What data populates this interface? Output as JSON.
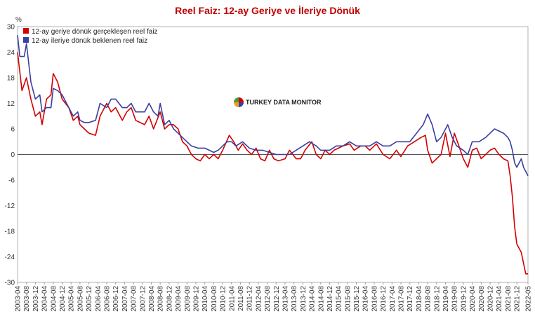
{
  "chart_data": {
    "type": "line",
    "title": "Reel Faiz: 12-ay Geriye ve İleriye Dönük",
    "ylabel": "%",
    "ylim": [
      -30,
      30
    ],
    "yticks": [
      30,
      24,
      18,
      12,
      6,
      0,
      -6,
      -12,
      -18,
      -24,
      -30
    ],
    "x_start": "2003-04",
    "x_end": "2022-05",
    "xtick_labels": [
      "2003-04",
      "2003-08",
      "2003-12",
      "2004-04",
      "2004-08",
      "2004-12",
      "2005-04",
      "2005-08",
      "2005-12",
      "2006-04",
      "2006-08",
      "2006-12",
      "2007-04",
      "2007-08",
      "2007-12",
      "2008-04",
      "2008-08",
      "2008-12",
      "2009-04",
      "2009-08",
      "2009-12",
      "2010-04",
      "2010-08",
      "2010-12",
      "2011-04",
      "2011-08",
      "2011-12",
      "2012-04",
      "2012-08",
      "2012-12",
      "2013-04",
      "2013-08",
      "2013-12",
      "2014-04",
      "2014-08",
      "2014-12",
      "2015-04",
      "2015-08",
      "2015-12",
      "2016-04",
      "2016-08",
      "2016-12",
      "2017-04",
      "2017-08",
      "2017-12",
      "2018-04",
      "2018-08",
      "2018-12",
      "2019-04",
      "2019-08",
      "2019-12",
      "2020-04",
      "2020-08",
      "2020-12",
      "2021-04",
      "2021-08",
      "2021-12",
      "2022-05"
    ],
    "legend_position": "top-left",
    "watermark": "TURKEY DATA MONITOR",
    "series": [
      {
        "name": "12-ay geriye dönük gerçekleşen reel faiz",
        "color": "#d40000",
        "points": [
          [
            "2003-04",
            24
          ],
          [
            "2003-06",
            15
          ],
          [
            "2003-08",
            18
          ],
          [
            "2003-10",
            13
          ],
          [
            "2003-12",
            9
          ],
          [
            "2004-02",
            10
          ],
          [
            "2004-03",
            7
          ],
          [
            "2004-05",
            13
          ],
          [
            "2004-07",
            14
          ],
          [
            "2004-08",
            19
          ],
          [
            "2004-10",
            17
          ],
          [
            "2004-12",
            13
          ],
          [
            "2005-03",
            11
          ],
          [
            "2005-05",
            8
          ],
          [
            "2005-07",
            9
          ],
          [
            "2005-08",
            7
          ],
          [
            "2005-10",
            6
          ],
          [
            "2005-12",
            5
          ],
          [
            "2006-03",
            4.5
          ],
          [
            "2006-05",
            9
          ],
          [
            "2006-08",
            12
          ],
          [
            "2006-10",
            10
          ],
          [
            "2006-12",
            11
          ],
          [
            "2007-03",
            8
          ],
          [
            "2007-05",
            10
          ],
          [
            "2007-07",
            11
          ],
          [
            "2007-09",
            8
          ],
          [
            "2007-11",
            7.5
          ],
          [
            "2008-01",
            7
          ],
          [
            "2008-03",
            9
          ],
          [
            "2008-05",
            6
          ],
          [
            "2008-08",
            10
          ],
          [
            "2008-10",
            6
          ],
          [
            "2008-12",
            7
          ],
          [
            "2009-02",
            7
          ],
          [
            "2009-04",
            6
          ],
          [
            "2009-06",
            3
          ],
          [
            "2009-08",
            2
          ],
          [
            "2009-10",
            0
          ],
          [
            "2009-12",
            -1
          ],
          [
            "2010-02",
            -1.5
          ],
          [
            "2010-04",
            0
          ],
          [
            "2010-06",
            -1
          ],
          [
            "2010-08",
            0
          ],
          [
            "2010-10",
            -1
          ],
          [
            "2010-12",
            1
          ],
          [
            "2011-03",
            4.5
          ],
          [
            "2011-05",
            3
          ],
          [
            "2011-07",
            1
          ],
          [
            "2011-09",
            2.5
          ],
          [
            "2011-11",
            1
          ],
          [
            "2012-01",
            0
          ],
          [
            "2012-03",
            1.5
          ],
          [
            "2012-05",
            -1
          ],
          [
            "2012-07",
            -1.5
          ],
          [
            "2012-09",
            1
          ],
          [
            "2012-11",
            -1
          ],
          [
            "2013-01",
            -1.5
          ],
          [
            "2013-04",
            -1
          ],
          [
            "2013-06",
            1
          ],
          [
            "2013-09",
            -1
          ],
          [
            "2013-11",
            -1
          ],
          [
            "2014-01",
            1
          ],
          [
            "2014-04",
            3
          ],
          [
            "2014-06",
            0
          ],
          [
            "2014-08",
            -1
          ],
          [
            "2014-10",
            1
          ],
          [
            "2014-12",
            0
          ],
          [
            "2015-02",
            1
          ],
          [
            "2015-04",
            1.5
          ],
          [
            "2015-06",
            2
          ],
          [
            "2015-09",
            2.5
          ],
          [
            "2015-11",
            1
          ],
          [
            "2016-02",
            2
          ],
          [
            "2016-04",
            2
          ],
          [
            "2016-06",
            1
          ],
          [
            "2016-09",
            2.5
          ],
          [
            "2016-12",
            0
          ],
          [
            "2017-03",
            -1
          ],
          [
            "2017-06",
            1
          ],
          [
            "2017-08",
            -0.5
          ],
          [
            "2017-11",
            2
          ],
          [
            "2018-02",
            3
          ],
          [
            "2018-05",
            4
          ],
          [
            "2018-07",
            4.5
          ],
          [
            "2018-08",
            1
          ],
          [
            "2018-10",
            -2
          ],
          [
            "2018-12",
            -1
          ],
          [
            "2019-02",
            0
          ],
          [
            "2019-04",
            5
          ],
          [
            "2019-06",
            -0.5
          ],
          [
            "2019-08",
            5
          ],
          [
            "2019-10",
            2
          ],
          [
            "2019-12",
            -1
          ],
          [
            "2020-02",
            -3
          ],
          [
            "2020-04",
            1
          ],
          [
            "2020-06",
            1.5
          ],
          [
            "2020-08",
            -1
          ],
          [
            "2020-10",
            0
          ],
          [
            "2020-12",
            1
          ],
          [
            "2021-02",
            1.5
          ],
          [
            "2021-04",
            0
          ],
          [
            "2021-06",
            -1
          ],
          [
            "2021-08",
            -1.5
          ],
          [
            "2021-09",
            -5
          ],
          [
            "2021-10",
            -10
          ],
          [
            "2021-11",
            -17
          ],
          [
            "2021-12",
            -21
          ],
          [
            "2022-02",
            -23
          ],
          [
            "2022-04",
            -28
          ],
          [
            "2022-05",
            -28
          ]
        ]
      },
      {
        "name": "12-ay ileriye dönük beklenen reel faiz",
        "color": "#3a3fa0",
        "points": [
          [
            "2003-04",
            28
          ],
          [
            "2003-05",
            23
          ],
          [
            "2003-07",
            23
          ],
          [
            "2003-08",
            26
          ],
          [
            "2003-10",
            17
          ],
          [
            "2003-12",
            13
          ],
          [
            "2004-02",
            14
          ],
          [
            "2004-03",
            10
          ],
          [
            "2004-05",
            11
          ],
          [
            "2004-07",
            11
          ],
          [
            "2004-08",
            15.5
          ],
          [
            "2004-10",
            15
          ],
          [
            "2004-12",
            14
          ],
          [
            "2005-02",
            12
          ],
          [
            "2005-05",
            9
          ],
          [
            "2005-07",
            10
          ],
          [
            "2005-08",
            8
          ],
          [
            "2005-10",
            7.5
          ],
          [
            "2005-12",
            7.5
          ],
          [
            "2006-03",
            8
          ],
          [
            "2006-05",
            12
          ],
          [
            "2006-08",
            11
          ],
          [
            "2006-10",
            13
          ],
          [
            "2006-12",
            13
          ],
          [
            "2007-03",
            11
          ],
          [
            "2007-05",
            11
          ],
          [
            "2007-07",
            12
          ],
          [
            "2007-09",
            10
          ],
          [
            "2007-11",
            10
          ],
          [
            "2008-01",
            10
          ],
          [
            "2008-03",
            12
          ],
          [
            "2008-05",
            10
          ],
          [
            "2008-07",
            9
          ],
          [
            "2008-08",
            12
          ],
          [
            "2008-10",
            7
          ],
          [
            "2008-12",
            8
          ],
          [
            "2009-02",
            6
          ],
          [
            "2009-04",
            5
          ],
          [
            "2009-06",
            4
          ],
          [
            "2009-08",
            3
          ],
          [
            "2009-10",
            2
          ],
          [
            "2010-01",
            1.5
          ],
          [
            "2010-04",
            1.5
          ],
          [
            "2010-06",
            1
          ],
          [
            "2010-08",
            0.5
          ],
          [
            "2010-10",
            1
          ],
          [
            "2010-12",
            2
          ],
          [
            "2011-02",
            3
          ],
          [
            "2011-04",
            3
          ],
          [
            "2011-06",
            2
          ],
          [
            "2011-09",
            3
          ],
          [
            "2011-12",
            1.5
          ],
          [
            "2012-03",
            1
          ],
          [
            "2012-06",
            1
          ],
          [
            "2012-09",
            0.5
          ],
          [
            "2012-12",
            0
          ],
          [
            "2013-03",
            0
          ],
          [
            "2013-06",
            0
          ],
          [
            "2013-09",
            1
          ],
          [
            "2013-12",
            2
          ],
          [
            "2014-03",
            3
          ],
          [
            "2014-06",
            2
          ],
          [
            "2014-08",
            1
          ],
          [
            "2014-10",
            1
          ],
          [
            "2014-12",
            1
          ],
          [
            "2015-03",
            2
          ],
          [
            "2015-06",
            2
          ],
          [
            "2015-09",
            3
          ],
          [
            "2015-12",
            2
          ],
          [
            "2016-03",
            2
          ],
          [
            "2016-06",
            2
          ],
          [
            "2016-09",
            3
          ],
          [
            "2016-12",
            2
          ],
          [
            "2017-03",
            2
          ],
          [
            "2017-06",
            3
          ],
          [
            "2017-09",
            3
          ],
          [
            "2017-12",
            3
          ],
          [
            "2018-03",
            5
          ],
          [
            "2018-06",
            7
          ],
          [
            "2018-08",
            9.5
          ],
          [
            "2018-10",
            7
          ],
          [
            "2018-12",
            3
          ],
          [
            "2019-02",
            4
          ],
          [
            "2019-05",
            7
          ],
          [
            "2019-07",
            4
          ],
          [
            "2019-09",
            2
          ],
          [
            "2019-12",
            1
          ],
          [
            "2020-02",
            0
          ],
          [
            "2020-04",
            3
          ],
          [
            "2020-07",
            3
          ],
          [
            "2020-10",
            4
          ],
          [
            "2020-12",
            5
          ],
          [
            "2021-02",
            6
          ],
          [
            "2021-04",
            5.5
          ],
          [
            "2021-06",
            5
          ],
          [
            "2021-08",
            4
          ],
          [
            "2021-09",
            3
          ],
          [
            "2021-10",
            1
          ],
          [
            "2021-11",
            -2
          ],
          [
            "2021-12",
            -3
          ],
          [
            "2022-02",
            -1
          ],
          [
            "2022-03",
            -3
          ],
          [
            "2022-05",
            -5
          ]
        ]
      }
    ]
  }
}
